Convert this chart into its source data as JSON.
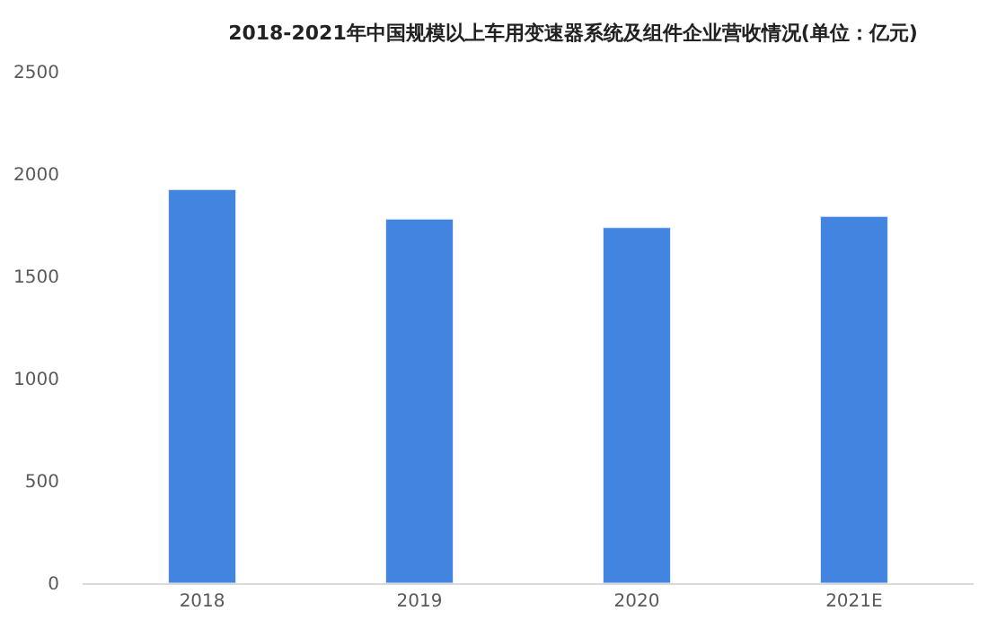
{
  "chart_data": {
    "type": "bar",
    "title": "2018-2021年中国规模以上车用变速器系统及组件企业营收情况(单位：亿元)",
    "categories": [
      "2018",
      "2019",
      "2020",
      "2021E"
    ],
    "values": [
      1924,
      1780,
      1738,
      1793
    ],
    "color": "#4285e0",
    "ylim": [
      0,
      2500
    ],
    "yticks": [
      0,
      500,
      1000,
      1500,
      2000,
      2500
    ],
    "grid": false
  }
}
